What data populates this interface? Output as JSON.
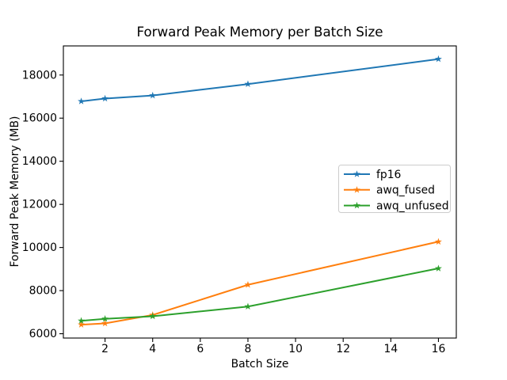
{
  "figure": {
    "background": "#ffffff"
  },
  "chart_data": {
    "type": "line",
    "title": "Forward Peak Memory per Batch Size",
    "xlabel": "Batch Size",
    "ylabel": "Forward Peak Memory (MB)",
    "x": [
      1,
      2,
      4,
      8,
      16
    ],
    "series": [
      {
        "name": "fp16",
        "color": "#1f77b4",
        "marker": "star",
        "values": [
          16780,
          16910,
          17050,
          17580,
          18740
        ]
      },
      {
        "name": "awq_fused",
        "color": "#ff7f0e",
        "marker": "star",
        "values": [
          6420,
          6480,
          6870,
          8270,
          10270
        ]
      },
      {
        "name": "awq_unfused",
        "color": "#2ca02c",
        "marker": "star",
        "values": [
          6600,
          6690,
          6810,
          7260,
          9030
        ]
      }
    ],
    "xlim": [
      0.25,
      16.75
    ],
    "ylim": [
      5800,
      19350
    ],
    "xticks": [
      2,
      4,
      6,
      8,
      10,
      12,
      14,
      16
    ],
    "yticks": [
      6000,
      8000,
      10000,
      12000,
      14000,
      16000,
      18000
    ],
    "grid": false,
    "axis_color": "#000000",
    "text_color": "#000000",
    "legend": {
      "position": "center right",
      "frame_color": "#cccccc",
      "frame_fill": "#ffffff",
      "entries": [
        "fp16",
        "awq_fused",
        "awq_unfused"
      ]
    }
  }
}
